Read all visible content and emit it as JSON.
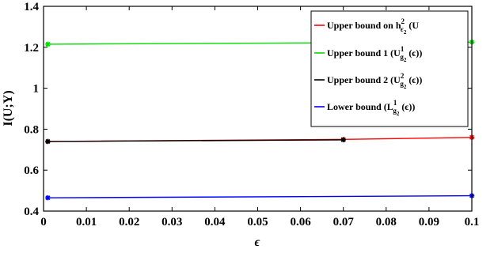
{
  "chart_data": {
    "type": "line",
    "xlabel": "ϵ",
    "ylabel": "I(U;Y)",
    "xlim": [
      0,
      0.1
    ],
    "ylim": [
      0.4,
      1.4
    ],
    "x_ticks": [
      "0",
      "0.01",
      "0.02",
      "0.03",
      "0.04",
      "0.05",
      "0.06",
      "0.07",
      "0.08",
      "0.09",
      "0.1"
    ],
    "y_ticks": [
      "0.4",
      "0.6",
      "0.8",
      "1",
      "1.2",
      "1.4"
    ],
    "grid": false,
    "legend_position": "top-right",
    "series": [
      {
        "key": "upper_h",
        "color": "#ff0000",
        "legend": {
          "text1": "Upper bound on h",
          "sup": "2",
          "sub": "ϵ",
          "text2": " (U",
          "sub2": "h",
          "subsub": "2",
          "text3": " (ϵ))"
        },
        "x": [
          0.001,
          0.07,
          0.1
        ],
        "y": [
          0.74,
          0.75,
          0.76
        ]
      },
      {
        "key": "upper_1",
        "color": "#00dd00",
        "legend": {
          "text1": "Upper bound 1 (U",
          "sup": "1",
          "sub": "g",
          "subsub": "2",
          "text2": " (ϵ))"
        },
        "x": [
          0.001,
          0.1
        ],
        "y": [
          1.215,
          1.225
        ]
      },
      {
        "key": "upper_2",
        "color": "#000000",
        "legend": {
          "text1": "Upper bound 2 (U",
          "sup": "2",
          "sub": "g",
          "subsub": "2",
          "text2": " (ϵ))"
        },
        "x": [
          0.001,
          0.07
        ],
        "y": [
          0.74,
          0.748
        ]
      },
      {
        "key": "lower",
        "color": "#0000ff",
        "legend": {
          "text1": "Lower bound (L",
          "sup": "1",
          "sub": "g",
          "subsub": "2",
          "text2": " (ϵ))"
        },
        "x": [
          0.001,
          0.1
        ],
        "y": [
          0.465,
          0.475
        ]
      }
    ]
  }
}
